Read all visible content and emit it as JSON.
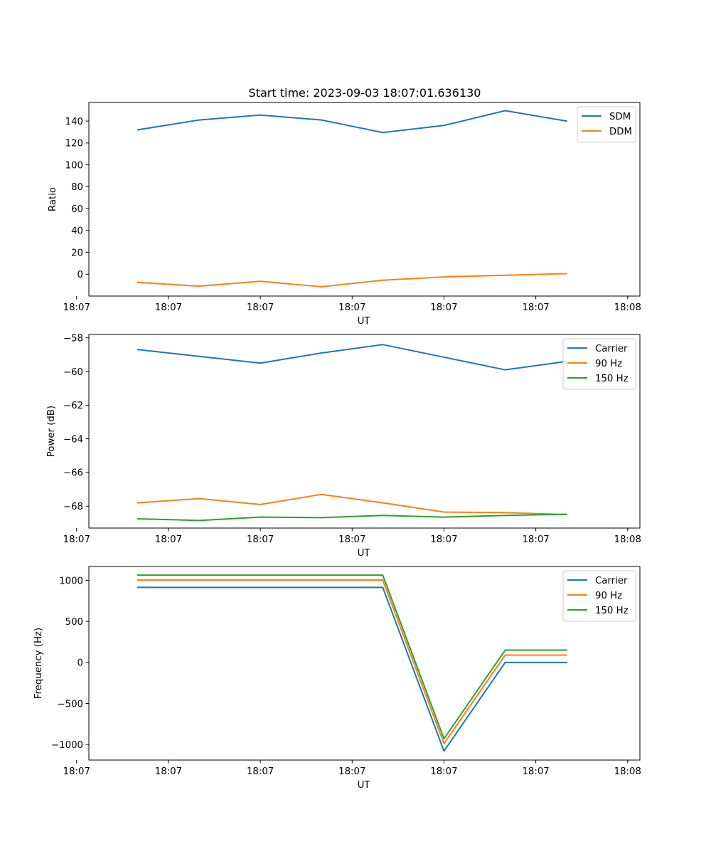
{
  "figure": {
    "title": "Start time: 2023-09-03 18:07:01.636130"
  },
  "chart_data": [
    {
      "type": "line",
      "title": "Start time: 2023-09-03 18:07:01.636130",
      "xlabel": "UT",
      "ylabel": "Ratio",
      "x": [
        1,
        2,
        3,
        4,
        5,
        6,
        7,
        8
      ],
      "xlim": [
        0.2,
        9.2
      ],
      "ylim": [
        -20,
        157
      ],
      "x_ticks": [
        {
          "value": 0,
          "label": "18:07"
        },
        {
          "value": 1.5,
          "label": "18:07"
        },
        {
          "value": 3,
          "label": "18:07"
        },
        {
          "value": 4.5,
          "label": "18:07"
        },
        {
          "value": 6,
          "label": "18:07"
        },
        {
          "value": 7.5,
          "label": "18:07"
        },
        {
          "value": 9,
          "label": "18:08"
        }
      ],
      "y_ticks": [
        {
          "value": 0,
          "label": "0"
        },
        {
          "value": 20,
          "label": "20"
        },
        {
          "value": 40,
          "label": "40"
        },
        {
          "value": 60,
          "label": "60"
        },
        {
          "value": 80,
          "label": "80"
        },
        {
          "value": 100,
          "label": "100"
        },
        {
          "value": 120,
          "label": "120"
        },
        {
          "value": 140,
          "label": "140"
        }
      ],
      "legend_position": "top-right",
      "grid": false,
      "series": [
        {
          "name": "SDM",
          "color": "#1f77b4",
          "values": [
            132,
            141,
            145.5,
            141,
            129.5,
            136,
            149.5,
            140
          ]
        },
        {
          "name": "DDM",
          "color": "#ff7f0e",
          "values": [
            -7.5,
            -11,
            -6.5,
            -11.5,
            -5.5,
            -2.5,
            -1,
            0.5
          ]
        }
      ]
    },
    {
      "type": "line",
      "title": "",
      "xlabel": "UT",
      "ylabel": "Power (dB)",
      "x": [
        1,
        2,
        3,
        4,
        5,
        6,
        7,
        8
      ],
      "xlim": [
        0.2,
        9.2
      ],
      "ylim": [
        -69.3,
        -57.8
      ],
      "x_ticks": [
        {
          "value": 0,
          "label": "18:07"
        },
        {
          "value": 1.5,
          "label": "18:07"
        },
        {
          "value": 3,
          "label": "18:07"
        },
        {
          "value": 4.5,
          "label": "18:07"
        },
        {
          "value": 6,
          "label": "18:07"
        },
        {
          "value": 7.5,
          "label": "18:07"
        },
        {
          "value": 9,
          "label": "18:08"
        }
      ],
      "y_ticks": [
        {
          "value": -68,
          "label": "−68"
        },
        {
          "value": -66,
          "label": "−66"
        },
        {
          "value": -64,
          "label": "−64"
        },
        {
          "value": -62,
          "label": "−62"
        },
        {
          "value": -60,
          "label": "−60"
        },
        {
          "value": -58,
          "label": "−58"
        }
      ],
      "legend_position": "top-right",
      "grid": false,
      "series": [
        {
          "name": "Carrier",
          "color": "#1f77b4",
          "values": [
            -58.7,
            -59.1,
            -59.5,
            -58.9,
            -58.4,
            -59.15,
            -59.9,
            -59.4
          ]
        },
        {
          "name": "90 Hz",
          "color": "#ff7f0e",
          "values": [
            -67.8,
            -67.55,
            -67.9,
            -67.3,
            -67.8,
            -68.35,
            -68.38,
            -68.5
          ]
        },
        {
          "name": "150 Hz",
          "color": "#2ca02c",
          "values": [
            -68.75,
            -68.85,
            -68.65,
            -68.68,
            -68.55,
            -68.65,
            -68.55,
            -68.48
          ]
        }
      ]
    },
    {
      "type": "line",
      "title": "",
      "xlabel": "UT",
      "ylabel": "Frequency (Hz)",
      "x": [
        1,
        2,
        3,
        4,
        5,
        6,
        7,
        8
      ],
      "xlim": [
        0.2,
        9.2
      ],
      "ylim": [
        -1190,
        1170
      ],
      "x_ticks": [
        {
          "value": 0,
          "label": "18:07"
        },
        {
          "value": 1.5,
          "label": "18:07"
        },
        {
          "value": 3,
          "label": "18:07"
        },
        {
          "value": 4.5,
          "label": "18:07"
        },
        {
          "value": 6,
          "label": "18:07"
        },
        {
          "value": 7.5,
          "label": "18:07"
        },
        {
          "value": 9,
          "label": "18:08"
        }
      ],
      "y_ticks": [
        {
          "value": -1000,
          "label": "−1000"
        },
        {
          "value": -500,
          "label": "−500"
        },
        {
          "value": 0,
          "label": "0"
        },
        {
          "value": 500,
          "label": "500"
        },
        {
          "value": 1000,
          "label": "1000"
        }
      ],
      "legend_position": "top-right",
      "grid": false,
      "series": [
        {
          "name": "Carrier",
          "color": "#1f77b4",
          "values": [
            915,
            915,
            915,
            915,
            915,
            -1080,
            0,
            0
          ]
        },
        {
          "name": "90 Hz",
          "color": "#ff7f0e",
          "values": [
            1005,
            1005,
            1005,
            1005,
            1005,
            -990,
            90,
            90
          ]
        },
        {
          "name": "150 Hz",
          "color": "#2ca02c",
          "values": [
            1065,
            1065,
            1065,
            1065,
            1065,
            -930,
            150,
            150
          ]
        }
      ]
    }
  ]
}
